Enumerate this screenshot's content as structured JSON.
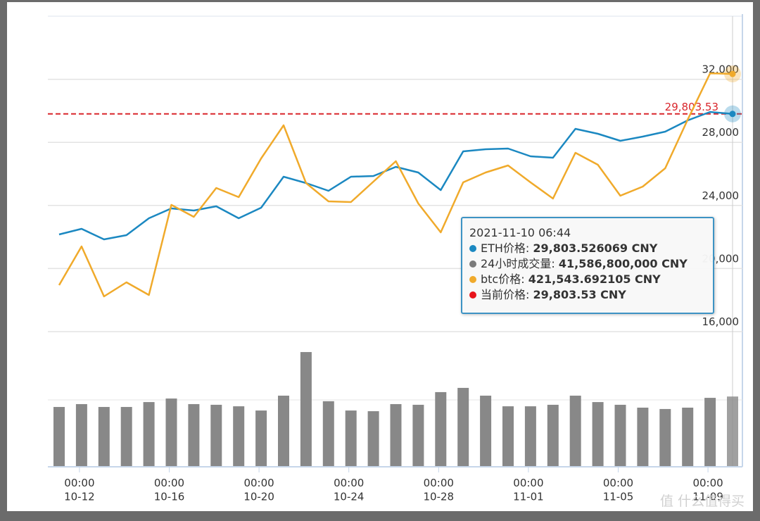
{
  "chart_data": [
    {
      "type": "line",
      "categories": [
        null,
        "00:00\n10-12",
        null,
        null,
        null,
        "00:00\n10-16",
        null,
        null,
        null,
        "00:00\n10-20",
        null,
        null,
        null,
        "00:00\n10-24",
        null,
        null,
        null,
        "00:00\n10-28",
        null,
        null,
        null,
        "00:00\n11-01",
        null,
        null,
        null,
        "00:00\n11-05",
        null,
        null,
        null,
        "00:00\n11-09",
        null
      ],
      "ylim": [
        16000,
        36000
      ],
      "yticks": [
        {
          "value": 16000,
          "label": "16,000"
        },
        {
          "value": 20000,
          "label": "20,000"
        },
        {
          "value": 24000,
          "label": "24,000"
        },
        {
          "value": 28000,
          "label": "28,000"
        },
        {
          "value": 32000,
          "label": "32,000"
        }
      ],
      "y2lim": [
        250000,
        460000
      ],
      "grid": true,
      "series": [
        {
          "color": "#1b88c1",
          "values": [
            22160,
            22518,
            21848,
            22116,
            23187,
            23812,
            23678,
            23946,
            23187,
            23857,
            25821,
            25419,
            24928,
            25821,
            25866,
            26446,
            26089,
            24973,
            27428,
            27562,
            27606,
            27115,
            27026,
            28857,
            28544,
            28098,
            28366,
            28678,
            29392,
            29928,
            29803.526069
          ]
        },
        {
          "color": "#f0aa2b",
          "axis": "y2",
          "values": [
            280938,
            306719,
            273438,
            282813,
            274375,
            334375,
            326406,
            345625,
            339531,
            365313,
            387344,
            348906,
            336719,
            336250,
            349844,
            363438,
            335313,
            316094,
            349375,
            355938,
            360625,
            349375,
            338594,
            369063,
            361094,
            340469,
            346563,
            358750,
            391094,
            422000,
            421543.692105
          ]
        }
      ],
      "reference": {
        "value": 29803.53,
        "value_label": "29,803.53",
        "color": "#d9262c"
      }
    },
    {
      "type": "bar",
      "ylim": [
        0,
        80000000000
      ],
      "color": "#888888",
      "values": [
        35400000000,
        37100000000,
        35400000000,
        35400000000,
        38300000000,
        40400000000,
        37100000000,
        36700000000,
        35800000000,
        33300000000,
        42100000000,
        67900000000,
        38800000000,
        33300000000,
        32900000000,
        37100000000,
        36700000000,
        44200000000,
        46700000000,
        42100000000,
        35800000000,
        35800000000,
        36700000000,
        42100000000,
        38300000000,
        36700000000,
        35000000000,
        34200000000,
        35000000000,
        40800000000,
        41586800000
      ]
    }
  ],
  "tooltip": {
    "title": "2021-11-10 06:44",
    "items": [
      {
        "label": "ETH价格:",
        "value": "29,803.526069 CNY",
        "color": "#1b88c1"
      },
      {
        "label": "24小时成交量:",
        "value": "41,586,800,000 CNY",
        "color": "#7a7a7a"
      },
      {
        "label": "btc价格:",
        "value": "421,543.692105 CNY",
        "color": "#f0aa2b"
      },
      {
        "label": "当前价格:",
        "value": "29,803.53 CNY",
        "color": "#e8141b"
      }
    ]
  },
  "watermark": "值 什么值得买"
}
